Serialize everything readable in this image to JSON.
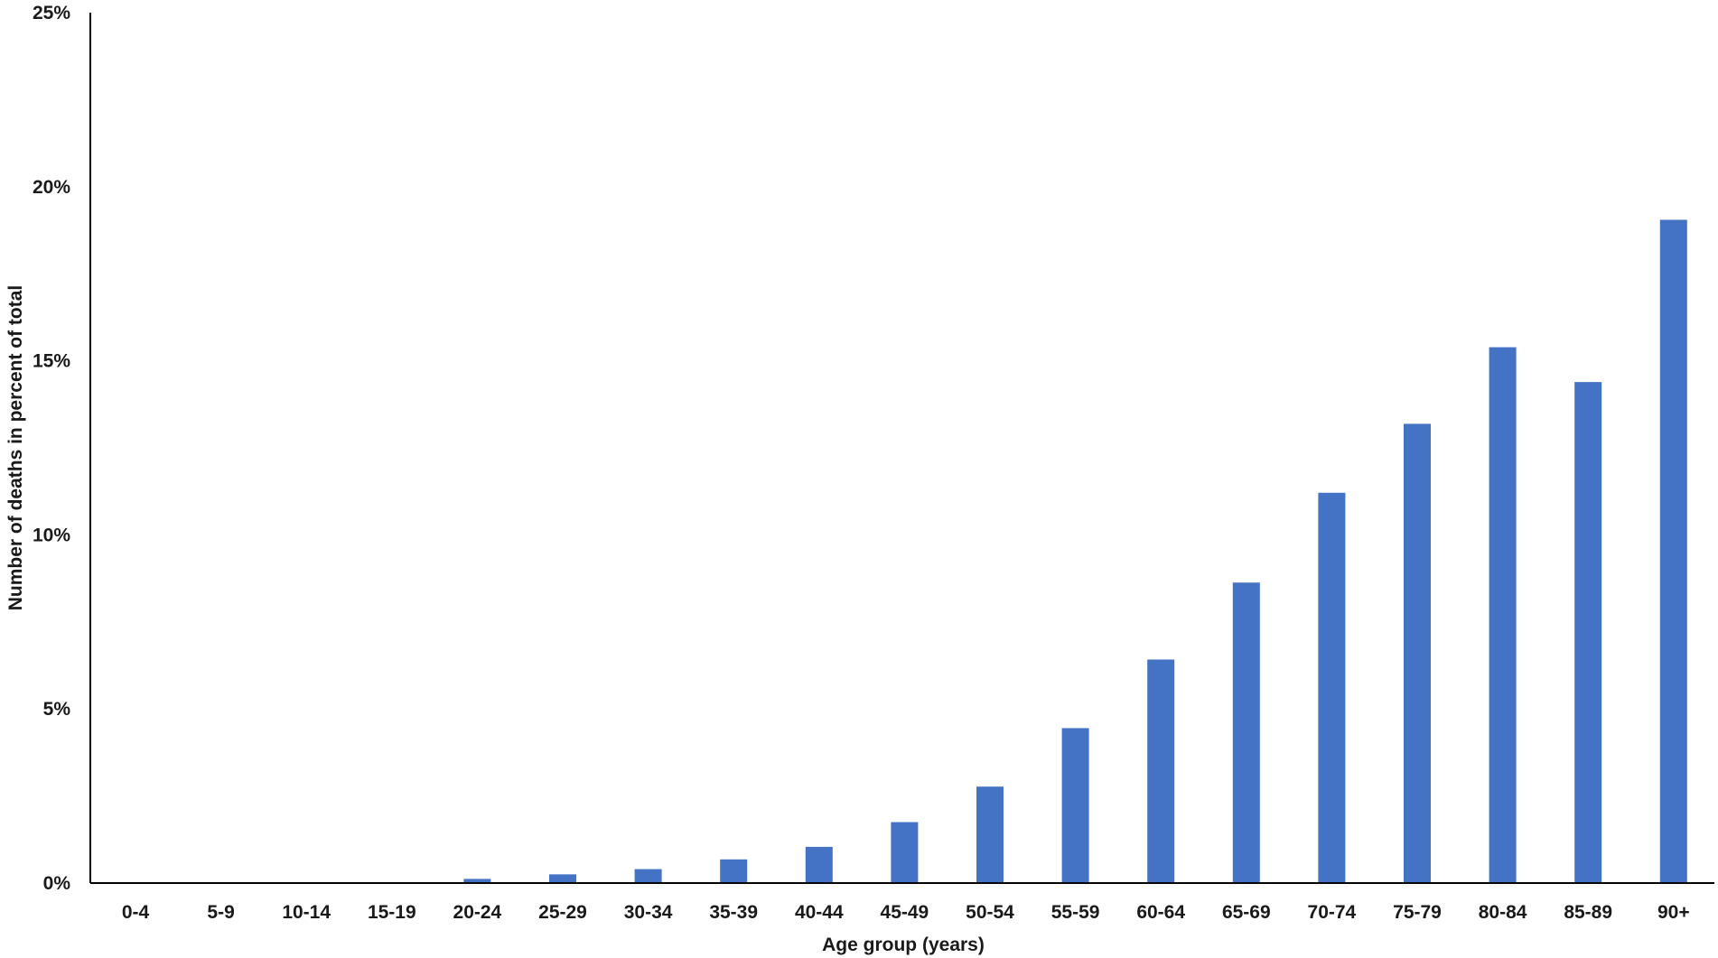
{
  "chart_data": {
    "type": "bar",
    "title": "",
    "xlabel": "Age group (years)",
    "ylabel": "Number of deaths in percent of total",
    "categories": [
      "0-4",
      "5-9",
      "10-14",
      "15-19",
      "20-24",
      "25-29",
      "30-34",
      "35-39",
      "40-44",
      "45-49",
      "50-54",
      "55-59",
      "60-64",
      "65-69",
      "70-74",
      "75-79",
      "80-84",
      "85-89",
      "90+"
    ],
    "values": [
      0.0,
      0.0,
      0.0,
      0.02,
      0.12,
      0.25,
      0.4,
      0.68,
      1.04,
      1.75,
      2.77,
      4.45,
      6.42,
      8.63,
      11.21,
      13.19,
      15.39,
      14.39,
      19.05
    ],
    "value_unit": "%",
    "ylim": [
      0,
      25
    ],
    "yticks": [
      0,
      5,
      10,
      15,
      20,
      25
    ],
    "ytick_labels": [
      "0%",
      "5%",
      "10%",
      "15%",
      "20%",
      "25%"
    ],
    "grid": false,
    "legend": "none",
    "bar_color": "#4472C4",
    "axis_color": "#000000"
  }
}
